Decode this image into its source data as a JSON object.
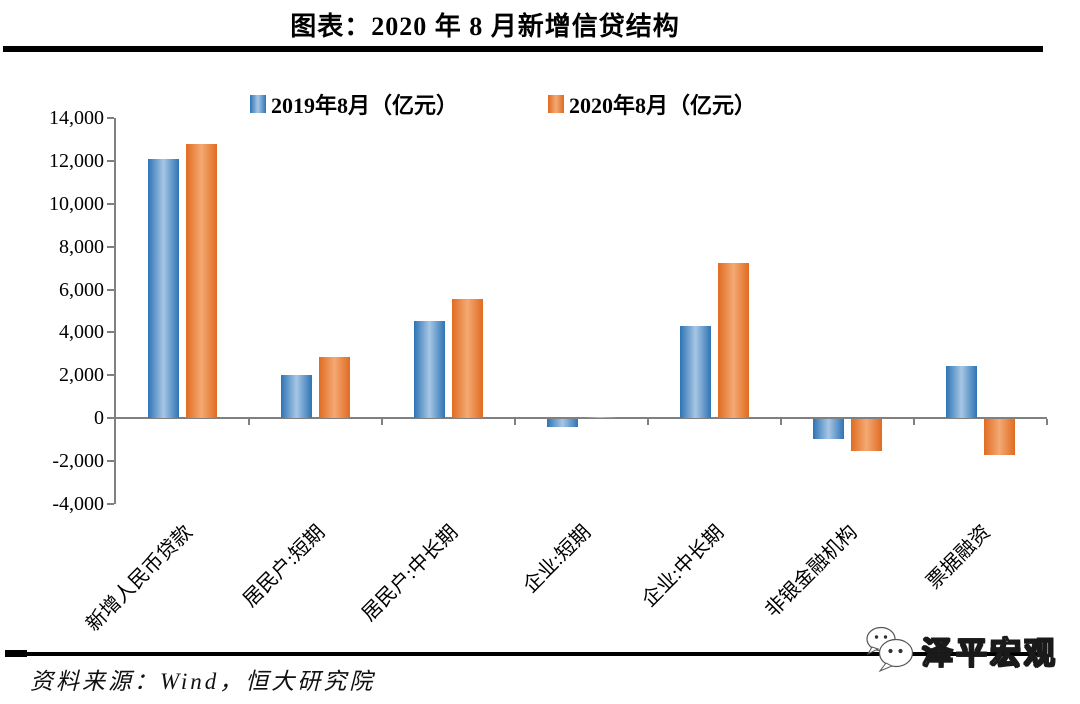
{
  "header": {
    "title": "图表：2020 年 8 月新增信贷结构"
  },
  "legend": {
    "items": [
      {
        "label": "2019年8月（亿元）",
        "color": "#2E74B5"
      },
      {
        "label": "2020年8月（亿元）",
        "color": "#E06B21"
      }
    ]
  },
  "chart_data": {
    "type": "bar",
    "categories": [
      "新增人民币贷款",
      "居民户:短期",
      "居民户:中长期",
      "企业:短期",
      "企业:中长期",
      "非银金融机构",
      "票据融资"
    ],
    "series": [
      {
        "name": "2019年8月（亿元）",
        "color": "#2E74B5",
        "values": [
          12100,
          1998,
          4540,
          -355,
          4285,
          -945,
          2426
        ]
      },
      {
        "name": "2020年8月（亿元）",
        "color": "#E06B21",
        "values": [
          12800,
          2844,
          5571,
          47,
          7252,
          -1474,
          -1676
        ]
      }
    ],
    "title": "图表：2020 年 8 月新增信贷结构",
    "xlabel": "",
    "ylabel": "",
    "ylim": [
      -4000,
      14000
    ],
    "ytick_step": 2000,
    "yticks": [
      14000,
      12000,
      10000,
      8000,
      6000,
      4000,
      2000,
      0,
      -2000,
      -4000
    ],
    "grid": "off",
    "legend_position": "top"
  },
  "footer": {
    "source": "资料来源：Wind，恒大研究院",
    "logo_text": "泽平宏观"
  }
}
